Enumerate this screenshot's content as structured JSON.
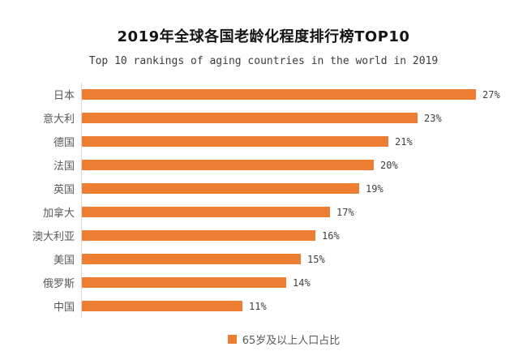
{
  "chart_data": {
    "type": "bar",
    "orientation": "horizontal",
    "title": "2019年全球各国老龄化程度排行榜TOP10",
    "subtitle": "Top 10 rankings of aging countries in the world in 2019",
    "categories": [
      "日本",
      "意大利",
      "德国",
      "法国",
      "英国",
      "加拿大",
      "澳大利亚",
      "美国",
      "俄罗斯",
      "中国"
    ],
    "values": [
      27,
      23,
      21,
      20,
      19,
      17,
      16,
      15,
      14,
      11
    ],
    "value_labels": [
      "27%",
      "23%",
      "21%",
      "20%",
      "19%",
      "17%",
      "16%",
      "15%",
      "14%",
      "11%"
    ],
    "legend_label": "65岁及以上人口占比",
    "xlim": [
      0,
      27
    ],
    "grid": false,
    "legend_position": "bottom-center",
    "colors": {
      "bar": "#ED7D31",
      "axis_line": "#D9D9D9",
      "category_label": "#595959",
      "value_label": "#404040",
      "title": "#141414",
      "subtitle": "#3D3D3D"
    }
  }
}
